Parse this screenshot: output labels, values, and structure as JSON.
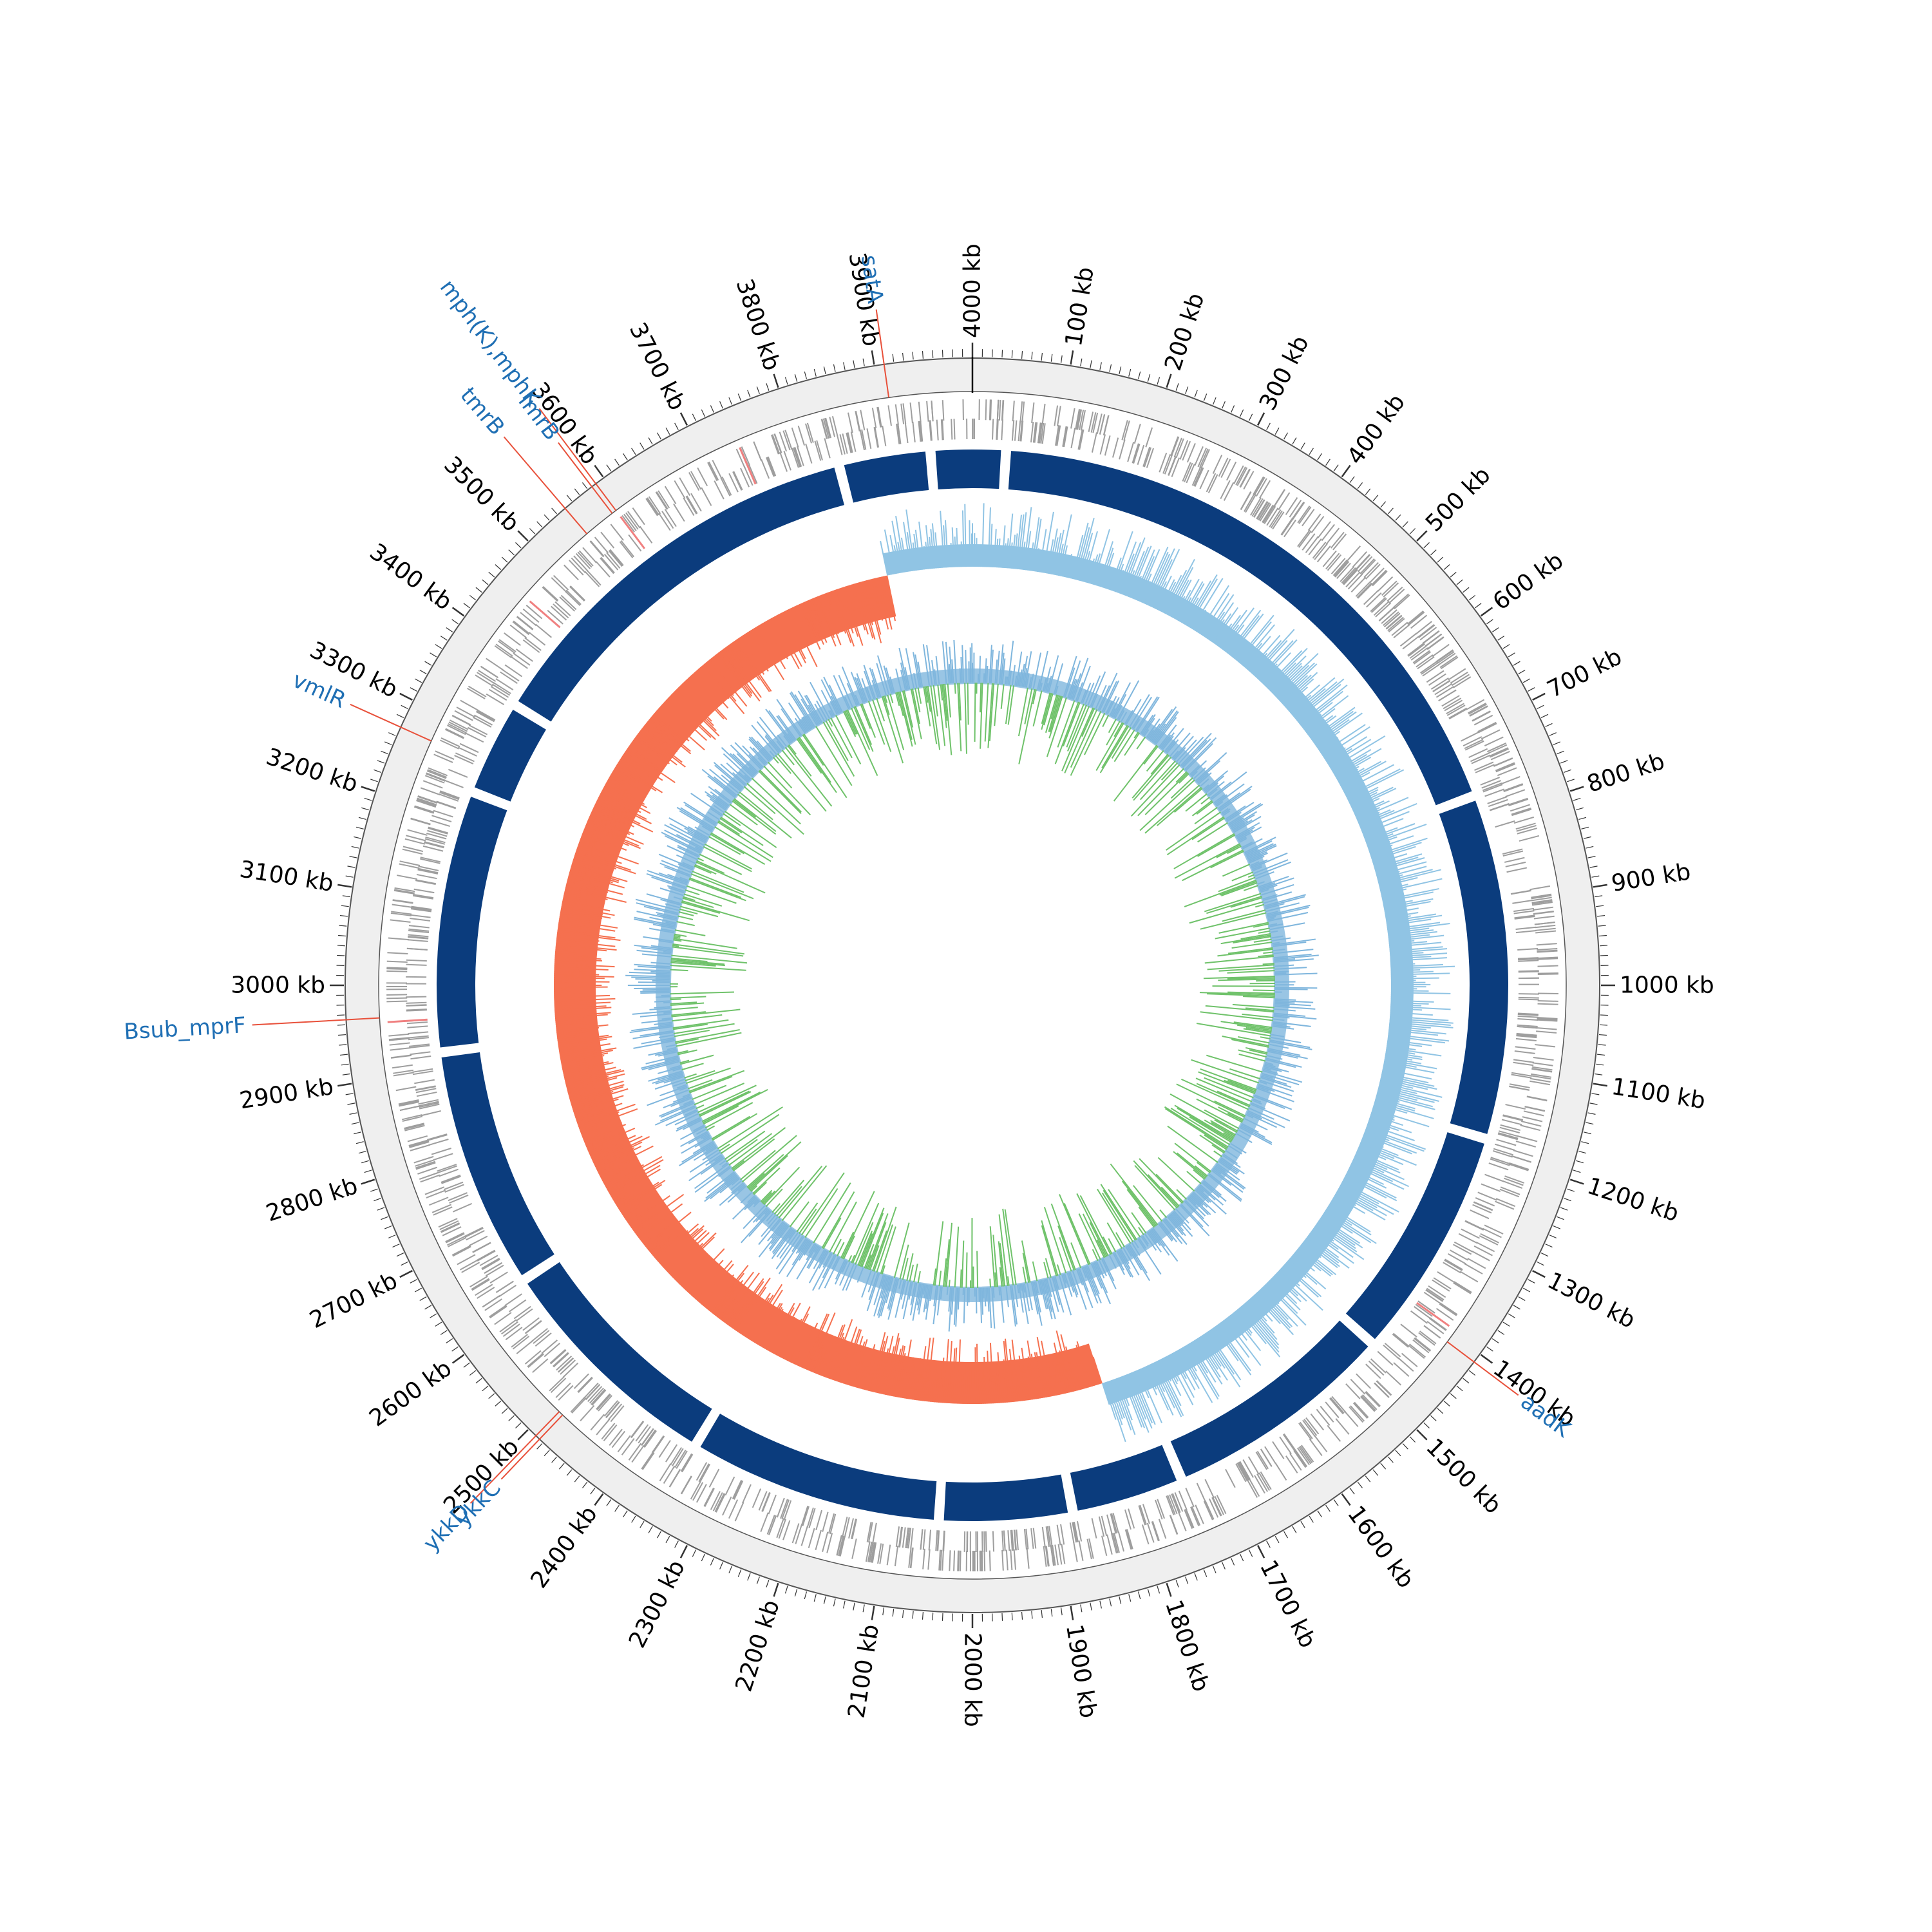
{
  "figure": {
    "genome_length_kb": 4000,
    "tick_label_unit": "kb",
    "major_tick_interval_kb": 100,
    "minor_tick_interval_kb": 10,
    "colors": {
      "background_ring": "#efefef",
      "ring_outline": "#555555",
      "cds_ticks": "#9e9e9e",
      "highlight_ticks": "#f08080",
      "contig_blocks": "#0b3c7d",
      "gc_content_above": "#90c4e4",
      "gc_content_below": "#f5704f",
      "gc_skew_positive": "#6fc26a",
      "gc_skew_negative": "#7fb6dd",
      "gene_label": "#1f6fb4",
      "gene_pointer": "#e8503a"
    }
  },
  "tick_labels": [
    "4000 kb",
    "100 kb",
    "200 kb",
    "300 kb",
    "400 kb",
    "500 kb",
    "600 kb",
    "700 kb",
    "800 kb",
    "900 kb",
    "1000 kb",
    "1100 kb",
    "1200 kb",
    "1300 kb",
    "1400 kb",
    "1500 kb",
    "1600 kb",
    "1700 kb",
    "1800 kb",
    "1900 kb",
    "2000 kb",
    "2100 kb",
    "2200 kb",
    "2300 kb",
    "2400 kb",
    "2500 kb",
    "2600 kb",
    "2700 kb",
    "2800 kb",
    "2900 kb",
    "3000 kb",
    "3100 kb",
    "3200 kb",
    "3300 kb",
    "3400 kb",
    "3500 kb",
    "3600 kb",
    "3700 kb",
    "3800 kb",
    "3900 kb"
  ],
  "genes": [
    {
      "name": "satA",
      "position_kb": 3910
    },
    {
      "name": "mph(K),mphK",
      "position_kb": 3590
    },
    {
      "name": "lmrB",
      "position_kb": 3585
    },
    {
      "name": "tmrB",
      "position_kb": 3550
    },
    {
      "name": "vmlR",
      "position_kb": 3270
    },
    {
      "name": "Bsub_mprF",
      "position_kb": 2965
    },
    {
      "name": "aadK",
      "position_kb": 1410
    },
    {
      "name": "ykkD",
      "position_kb": 2490
    },
    {
      "name": "ykkC",
      "position_kb": 2485
    }
  ],
  "contig_gaps_kb": [
    40,
    770,
    1185,
    1465,
    1745,
    1880,
    2040,
    2345,
    2630,
    2920,
    3235,
    3350,
    3840,
    3950
  ],
  "gc_content_profile_kb": [
    {
      "start": 0,
      "end": 1800,
      "side": "above"
    },
    {
      "start": 1800,
      "end": 3870,
      "side": "below"
    },
    {
      "start": 3870,
      "end": 4000,
      "side": "above"
    }
  ]
}
